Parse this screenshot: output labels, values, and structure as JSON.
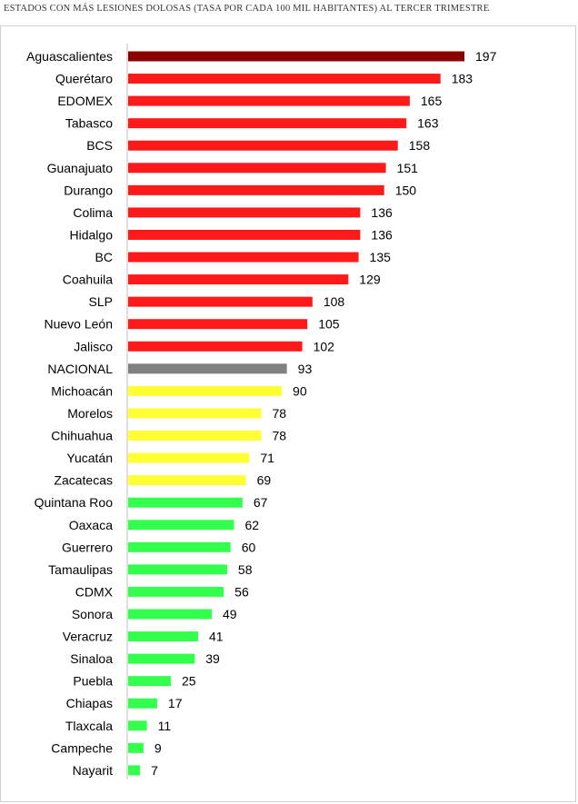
{
  "title": "ESTADOS CON MÁS LESIONES DOLOSAS (TASA POR CADA 100 MIL HABITANTES) AL TERCER TRIMESTRE",
  "colors": {
    "top": "#8b0000",
    "red": "#ff1a1a",
    "national": "#808080",
    "yellow": "#ffff33",
    "green": "#33ff4d",
    "axis": "#bfbfbf"
  },
  "chart_data": {
    "type": "bar",
    "orientation": "horizontal",
    "title": "ESTADOS CON MÁS LESIONES DOLOSAS (TASA POR CADA 100 MIL HABITANTES) AL TERCER TRIMESTRE",
    "xlim": [
      0,
      197
    ],
    "grid": false,
    "data_labels": true,
    "categories": [
      "Aguascalientes",
      "Querétaro",
      "EDOMEX",
      "Tabasco",
      "BCS",
      "Guanajuato",
      "Durango",
      "Colima",
      "Hidalgo",
      "BC",
      "Coahuila",
      "SLP",
      "Nuevo León",
      "Jalisco",
      "NACIONAL",
      "Michoacán",
      "Morelos",
      "Chihuahua",
      "Yucatán",
      "Zacatecas",
      "Quintana Roo",
      "Oaxaca",
      "Guerrero",
      "Tamaulipas",
      "CDMX",
      "Sonora",
      "Veracruz",
      "Sinaloa",
      "Puebla",
      "Chiapas",
      "Tlaxcala",
      "Campeche",
      "Nayarit"
    ],
    "values": [
      197,
      183,
      165,
      163,
      158,
      151,
      150,
      136,
      136,
      135,
      129,
      108,
      105,
      102,
      93,
      90,
      78,
      78,
      71,
      69,
      67,
      62,
      60,
      58,
      56,
      49,
      41,
      39,
      25,
      17,
      11,
      9,
      7
    ],
    "color_groups": [
      "top",
      "red",
      "red",
      "red",
      "red",
      "red",
      "red",
      "red",
      "red",
      "red",
      "red",
      "red",
      "red",
      "red",
      "national",
      "yellow",
      "yellow",
      "yellow",
      "yellow",
      "yellow",
      "green",
      "green",
      "green",
      "green",
      "green",
      "green",
      "green",
      "green",
      "green",
      "green",
      "green",
      "green",
      "green"
    ]
  }
}
